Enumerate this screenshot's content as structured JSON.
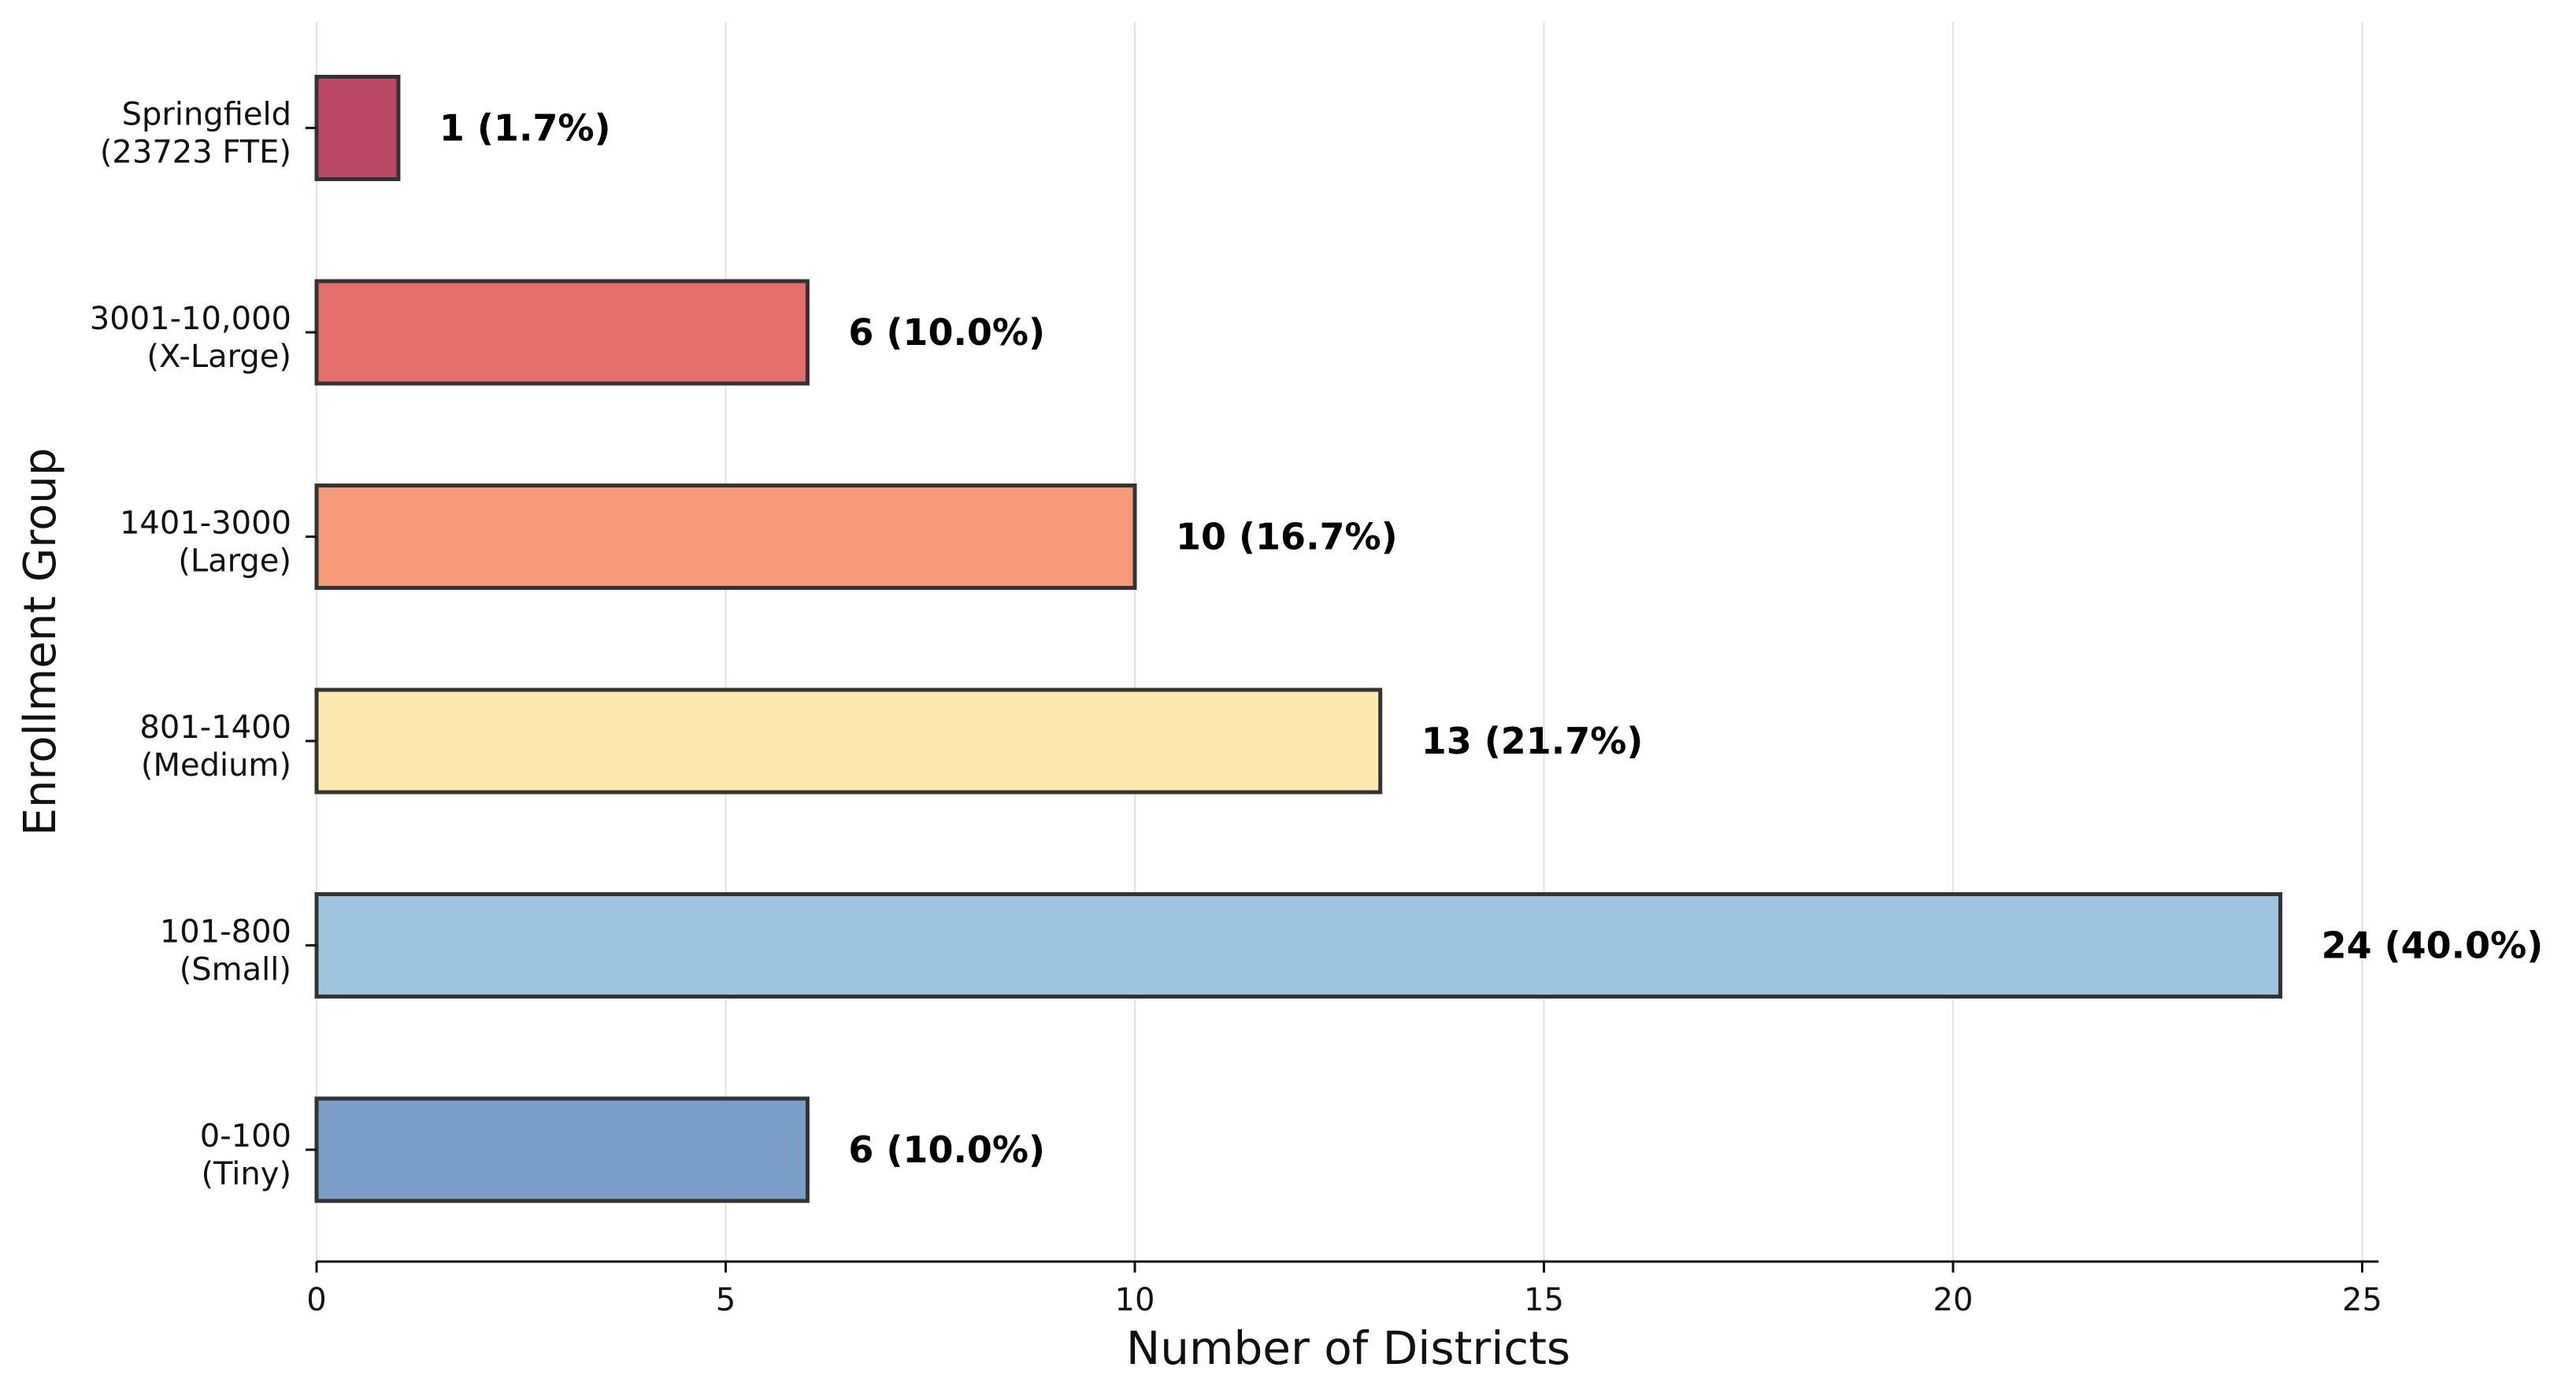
{
  "chart_data": {
    "type": "bar",
    "orientation": "horizontal",
    "title": "",
    "xlabel": "Number of Districts",
    "ylabel": "Enrollment Group",
    "xlim": [
      0,
      25.2
    ],
    "xticks": [
      0,
      5,
      10,
      15,
      20,
      25
    ],
    "xtick_labels": [
      "0",
      "5",
      "10",
      "15",
      "20",
      "25"
    ],
    "grid": "vertical",
    "legend": "none",
    "categories": [
      {
        "line1": "0-100",
        "line2": "(Tiny)"
      },
      {
        "line1": "101-800",
        "line2": "(Small)"
      },
      {
        "line1": "801-1400",
        "line2": "(Medium)"
      },
      {
        "line1": "1401-3000",
        "line2": "(Large)"
      },
      {
        "line1": "3001-10,000",
        "line2": "(X-Large)"
      },
      {
        "line1": "Springfield",
        "line2": "(23723 FTE)"
      }
    ],
    "values": [
      6,
      24,
      13,
      10,
      6,
      1
    ],
    "data_labels": [
      "6 (10.0%)",
      "24 (40.0%)",
      "13 (21.7%)",
      "10 (16.7%)",
      "6 (10.0%)",
      "1 (1.7%)"
    ],
    "colors": [
      "#7b9ec9",
      "#9ec4df",
      "#fde8b0",
      "#f6997b",
      "#e46e69",
      "#bb4965"
    ],
    "edge_color": "#333333"
  }
}
